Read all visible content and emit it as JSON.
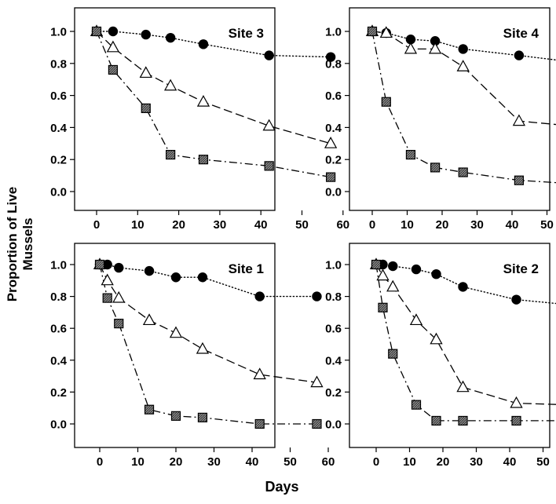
{
  "ylabel": "Proportion of Live Mussels",
  "xlabel": "Days",
  "chart_data": [
    {
      "type": "line",
      "title": "Site 3",
      "ylim": [
        -0.1,
        1.12
      ],
      "xlim": [
        -7,
        60
      ],
      "xticks": [
        0,
        10,
        20,
        30,
        40,
        50,
        60
      ],
      "yticks": [
        "0.0",
        "0.2",
        "0.4",
        "0.6",
        "0.8",
        "1.0"
      ],
      "grid": false,
      "series": [
        {
          "marker": "filled-circle",
          "line": "dotted",
          "x": [
            0,
            4,
            12,
            18,
            26,
            42,
            57
          ],
          "y": [
            1.0,
            1.0,
            0.98,
            0.96,
            0.92,
            0.85,
            0.84
          ]
        },
        {
          "marker": "open-triangle",
          "line": "dashed",
          "x": [
            0,
            4,
            12,
            18,
            26,
            42,
            57
          ],
          "y": [
            1.0,
            0.9,
            0.74,
            0.66,
            0.56,
            0.41,
            0.3
          ]
        },
        {
          "marker": "hatched-square",
          "line": "dash-dot",
          "x": [
            0,
            4,
            12,
            18,
            26,
            42,
            57
          ],
          "y": [
            1.0,
            0.76,
            0.52,
            0.23,
            0.2,
            0.16,
            0.09
          ]
        }
      ]
    },
    {
      "type": "line",
      "title": "Site 4",
      "ylim": [
        -0.1,
        1.12
      ],
      "xlim": [
        -7,
        60
      ],
      "xticks": [
        0,
        10,
        20,
        30,
        40,
        50,
        60
      ],
      "yticks": [
        "0.0",
        "0.2",
        "0.4",
        "0.6",
        "0.8",
        "1.0"
      ],
      "grid": false,
      "series": [
        {
          "marker": "filled-circle",
          "line": "dotted",
          "x": [
            0,
            4,
            11,
            18,
            26,
            42,
            57
          ],
          "y": [
            1.0,
            0.99,
            0.95,
            0.94,
            0.89,
            0.85,
            0.81
          ]
        },
        {
          "marker": "open-triangle",
          "line": "dashed",
          "x": [
            0,
            4,
            11,
            18,
            26,
            42,
            57
          ],
          "y": [
            1.0,
            0.99,
            0.89,
            0.89,
            0.78,
            0.44,
            0.41
          ]
        },
        {
          "marker": "hatched-square",
          "line": "dash-dot",
          "x": [
            0,
            4,
            11,
            18,
            26,
            42,
            57
          ],
          "y": [
            1.0,
            0.56,
            0.23,
            0.15,
            0.12,
            0.07,
            0.05
          ]
        }
      ]
    },
    {
      "type": "line",
      "title": "Site 1",
      "ylim": [
        -0.1,
        1.12
      ],
      "xlim": [
        -7,
        60
      ],
      "xticks": [
        0,
        10,
        20,
        30,
        40,
        50,
        60
      ],
      "yticks": [
        "0.0",
        "0.2",
        "0.4",
        "0.6",
        "0.8",
        "1.0"
      ],
      "grid": false,
      "series": [
        {
          "marker": "filled-circle",
          "line": "dotted",
          "x": [
            0,
            2,
            5,
            13,
            20,
            27,
            42,
            57
          ],
          "y": [
            1.0,
            1.0,
            0.98,
            0.96,
            0.92,
            0.92,
            0.8,
            0.8
          ]
        },
        {
          "marker": "open-triangle",
          "line": "dashed",
          "x": [
            0,
            2,
            5,
            13,
            20,
            27,
            42,
            57
          ],
          "y": [
            1.0,
            0.9,
            0.79,
            0.65,
            0.57,
            0.47,
            0.31,
            0.26
          ]
        },
        {
          "marker": "hatched-square",
          "line": "dash-dot",
          "x": [
            0,
            2,
            5,
            13,
            20,
            27,
            42,
            57
          ],
          "y": [
            1.0,
            0.79,
            0.63,
            0.09,
            0.05,
            0.04,
            0.0,
            0.0
          ]
        }
      ]
    },
    {
      "type": "line",
      "title": "Site 2",
      "ylim": [
        -0.1,
        1.12
      ],
      "xlim": [
        -7,
        60
      ],
      "xticks": [
        0,
        10,
        20,
        30,
        40,
        50,
        60
      ],
      "yticks": [
        "0.0",
        "0.2",
        "0.4",
        "0.6",
        "0.8",
        "1.0"
      ],
      "grid": false,
      "series": [
        {
          "marker": "filled-circle",
          "line": "dotted",
          "x": [
            0,
            2,
            5,
            12,
            18,
            26,
            42,
            57
          ],
          "y": [
            1.0,
            1.0,
            0.99,
            0.97,
            0.94,
            0.86,
            0.78,
            0.75
          ]
        },
        {
          "marker": "open-triangle",
          "line": "dashed",
          "x": [
            0,
            2,
            5,
            12,
            18,
            26,
            42,
            57
          ],
          "y": [
            1.0,
            0.93,
            0.86,
            0.65,
            0.53,
            0.23,
            0.13,
            0.12
          ]
        },
        {
          "marker": "hatched-square",
          "line": "dash-dot",
          "x": [
            0,
            2,
            5,
            12,
            18,
            26,
            42,
            57
          ],
          "y": [
            1.0,
            0.73,
            0.44,
            0.12,
            0.02,
            0.02,
            0.02,
            0.02
          ]
        }
      ]
    }
  ]
}
